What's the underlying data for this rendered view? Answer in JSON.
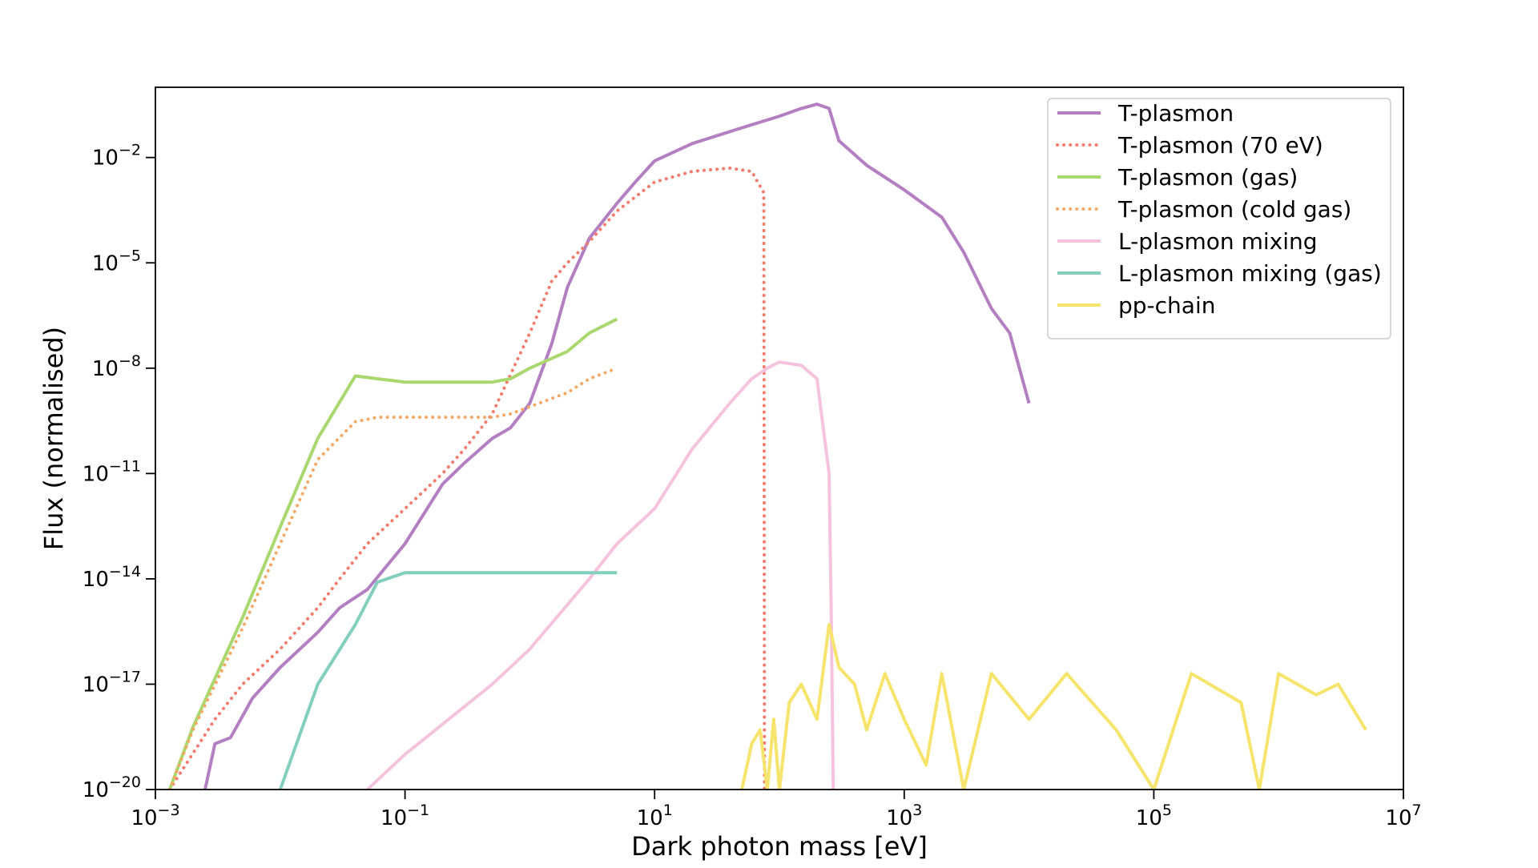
{
  "chart_data": {
    "type": "line",
    "title": "",
    "xlabel": "Dark photon mass [eV]",
    "ylabel": "Flux (normalised)",
    "x_scale": "log",
    "y_scale": "log",
    "xlim": [
      0.001,
      10000000
    ],
    "ylim": [
      1e-20,
      1
    ],
    "x_ticks": [
      {
        "value": 0.001,
        "base": "10",
        "exp": "−3"
      },
      {
        "value": 0.1,
        "base": "10",
        "exp": "−1"
      },
      {
        "value": 10,
        "base": "10",
        "exp": "1"
      },
      {
        "value": 1000,
        "base": "10",
        "exp": "3"
      },
      {
        "value": 100000,
        "base": "10",
        "exp": "5"
      },
      {
        "value": 10000000,
        "base": "10",
        "exp": "7"
      }
    ],
    "y_ticks": [
      {
        "value": 1e-20,
        "base": "10",
        "exp": "−20"
      },
      {
        "value": 1e-17,
        "base": "10",
        "exp": "−17"
      },
      {
        "value": 1e-14,
        "base": "10",
        "exp": "−14"
      },
      {
        "value": 1e-11,
        "base": "10",
        "exp": "−11"
      },
      {
        "value": 1e-08,
        "base": "10",
        "exp": "−8"
      },
      {
        "value": 1e-05,
        "base": "10",
        "exp": "−5"
      },
      {
        "value": 0.01,
        "base": "10",
        "exp": "−2"
      }
    ],
    "grid": false,
    "legend_position": "top-right",
    "series": [
      {
        "name": "T-plasmon",
        "color": "#b47fc2",
        "style": "solid",
        "points": [
          [
            0.0025,
            1e-20
          ],
          [
            0.003,
            2e-19
          ],
          [
            0.004,
            3e-19
          ],
          [
            0.006,
            4e-18
          ],
          [
            0.01,
            3e-17
          ],
          [
            0.02,
            3e-16
          ],
          [
            0.03,
            1.5e-15
          ],
          [
            0.05,
            5e-15
          ],
          [
            0.1,
            1e-13
          ],
          [
            0.2,
            5e-12
          ],
          [
            0.3,
            2e-11
          ],
          [
            0.5,
            1e-10
          ],
          [
            0.7,
            2e-10
          ],
          [
            1,
            1e-09
          ],
          [
            1.5,
            5e-08
          ],
          [
            2,
            2e-06
          ],
          [
            3,
            5e-05
          ],
          [
            5,
            0.0005
          ],
          [
            7,
            0.002
          ],
          [
            10,
            0.008
          ],
          [
            20,
            0.025
          ],
          [
            50,
            0.07
          ],
          [
            100,
            0.15
          ],
          [
            150,
            0.25
          ],
          [
            200,
            0.33
          ],
          [
            250,
            0.25
          ],
          [
            300,
            0.03
          ],
          [
            500,
            0.006
          ],
          [
            1000,
            0.0012
          ],
          [
            2000,
            0.0002
          ],
          [
            3000,
            2e-05
          ],
          [
            5000,
            5e-07
          ],
          [
            7000,
            1e-07
          ],
          [
            10000,
            1e-09
          ]
        ]
      },
      {
        "name": "T-plasmon (70 eV)",
        "color": "#f47c6c",
        "style": "dotted",
        "points": [
          [
            0.0013,
            1e-20
          ],
          [
            0.003,
            1e-18
          ],
          [
            0.005,
            1e-17
          ],
          [
            0.01,
            1e-16
          ],
          [
            0.02,
            1.5e-15
          ],
          [
            0.03,
            1e-14
          ],
          [
            0.05,
            1e-13
          ],
          [
            0.1,
            1e-12
          ],
          [
            0.2,
            1e-11
          ],
          [
            0.3,
            5e-11
          ],
          [
            0.5,
            5e-10
          ],
          [
            1,
            1e-07
          ],
          [
            1.5,
            3e-06
          ],
          [
            2,
            1e-05
          ],
          [
            3,
            4e-05
          ],
          [
            5,
            0.0003
          ],
          [
            10,
            0.002
          ],
          [
            20,
            0.004
          ],
          [
            40,
            0.005
          ],
          [
            60,
            0.004
          ],
          [
            75,
            0.001
          ],
          [
            76,
            1e-20
          ]
        ]
      },
      {
        "name": "T-plasmon (gas)",
        "color": "#a9d86e",
        "style": "solid",
        "points": [
          [
            0.0013,
            1e-20
          ],
          [
            0.002,
            6e-19
          ],
          [
            0.005,
            8e-16
          ],
          [
            0.01,
            3e-13
          ],
          [
            0.02,
            1e-10
          ],
          [
            0.04,
            6e-09
          ],
          [
            0.06,
            5e-09
          ],
          [
            0.1,
            4e-09
          ],
          [
            0.3,
            4e-09
          ],
          [
            0.5,
            4e-09
          ],
          [
            0.7,
            5e-09
          ],
          [
            1,
            1e-08
          ],
          [
            2,
            3e-08
          ],
          [
            3,
            1e-07
          ],
          [
            5,
            2.5e-07
          ]
        ]
      },
      {
        "name": "T-plasmon (cold gas)",
        "color": "#f4a964",
        "style": "dotted",
        "points": [
          [
            0.0013,
            1e-20
          ],
          [
            0.002,
            5e-19
          ],
          [
            0.005,
            4e-16
          ],
          [
            0.01,
            1e-13
          ],
          [
            0.02,
            2.5e-11
          ],
          [
            0.04,
            3e-10
          ],
          [
            0.06,
            4e-10
          ],
          [
            0.1,
            4e-10
          ],
          [
            0.5,
            4e-10
          ],
          [
            0.7,
            5e-10
          ],
          [
            1,
            8e-10
          ],
          [
            2,
            2e-09
          ],
          [
            3,
            5e-09
          ],
          [
            5,
            1e-08
          ]
        ]
      },
      {
        "name": "L-plasmon mixing",
        "color": "#f6c3df",
        "style": "solid",
        "points": [
          [
            0.05,
            1e-20
          ],
          [
            0.1,
            1e-19
          ],
          [
            0.5,
            1e-17
          ],
          [
            1,
            1e-16
          ],
          [
            3,
            1e-14
          ],
          [
            5,
            1e-13
          ],
          [
            10,
            1e-12
          ],
          [
            20,
            5e-11
          ],
          [
            40,
            1e-09
          ],
          [
            60,
            5e-09
          ],
          [
            80,
            1e-08
          ],
          [
            100,
            1.5e-08
          ],
          [
            150,
            1.2e-08
          ],
          [
            200,
            5e-09
          ],
          [
            250,
            1e-11
          ],
          [
            260,
            1e-15
          ],
          [
            270,
            1e-20
          ]
        ]
      },
      {
        "name": "L-plasmon mixing (gas)",
        "color": "#83cfbe",
        "style": "solid",
        "points": [
          [
            0.01,
            1e-20
          ],
          [
            0.02,
            1e-17
          ],
          [
            0.04,
            5e-16
          ],
          [
            0.06,
            8e-15
          ],
          [
            0.1,
            1.5e-14
          ],
          [
            0.3,
            1.5e-14
          ],
          [
            1,
            1.5e-14
          ],
          [
            3,
            1.5e-14
          ],
          [
            5,
            1.5e-14
          ]
        ]
      },
      {
        "name": "pp-chain",
        "color": "#f6e46c",
        "style": "solid",
        "points": [
          [
            50,
            1e-20
          ],
          [
            60,
            2e-19
          ],
          [
            70,
            5e-19
          ],
          [
            80,
            1e-20
          ],
          [
            90,
            1e-18
          ],
          [
            100,
            1e-20
          ],
          [
            120,
            3e-18
          ],
          [
            150,
            1e-17
          ],
          [
            200,
            1e-18
          ],
          [
            250,
            5e-16
          ],
          [
            300,
            3e-17
          ],
          [
            400,
            1e-17
          ],
          [
            500,
            5e-19
          ],
          [
            700,
            2e-17
          ],
          [
            1000,
            1e-18
          ],
          [
            1500,
            5e-20
          ],
          [
            2000,
            2e-17
          ],
          [
            3000,
            1e-20
          ],
          [
            5000,
            2e-17
          ],
          [
            10000,
            1e-18
          ],
          [
            20000,
            2e-17
          ],
          [
            50000,
            5e-19
          ],
          [
            100000,
            1e-20
          ],
          [
            200000,
            2e-17
          ],
          [
            500000,
            3e-18
          ],
          [
            700000,
            1e-20
          ],
          [
            1000000,
            2e-17
          ],
          [
            2000000,
            5e-18
          ],
          [
            3000000,
            1e-17
          ],
          [
            5000000,
            5e-19
          ]
        ]
      }
    ]
  }
}
